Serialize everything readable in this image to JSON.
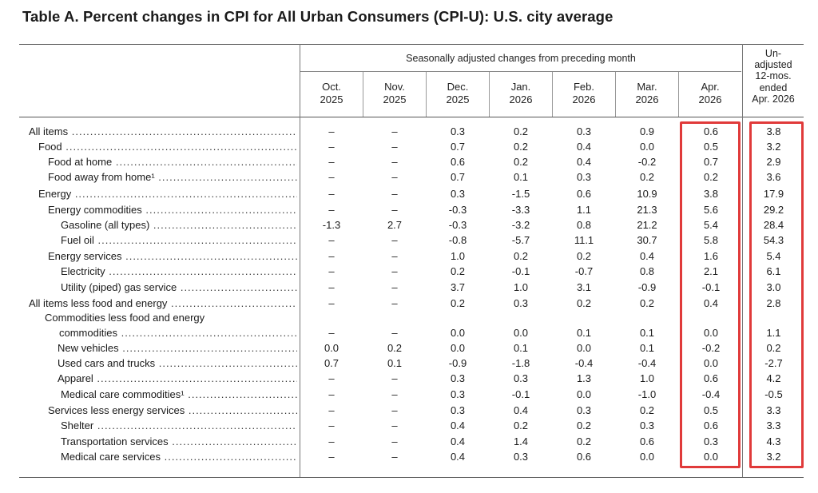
{
  "title": "Table A. Percent changes in CPI for All Urban Consumers (CPI-U): U.S. city average",
  "header": {
    "seasonal": "Seasonally adjusted changes from preceding month",
    "unadjusted": [
      "Un-",
      "adjusted",
      "12-mos.",
      "ended",
      "Apr. 2026"
    ],
    "months": [
      {
        "m": "Oct.",
        "y": "2025"
      },
      {
        "m": "Nov.",
        "y": "2025"
      },
      {
        "m": "Dec.",
        "y": "2025"
      },
      {
        "m": "Jan.",
        "y": "2026"
      },
      {
        "m": "Feb.",
        "y": "2026"
      },
      {
        "m": "Mar.",
        "y": "2026"
      },
      {
        "m": "Apr.",
        "y": "2026"
      }
    ]
  },
  "rows": [
    {
      "label": "All items",
      "values": [
        "–",
        "–",
        "0.3",
        "0.2",
        "0.3",
        "0.9",
        "0.6",
        "3.8"
      ]
    },
    {
      "label": "Food",
      "values": [
        "–",
        "–",
        "0.7",
        "0.2",
        "0.4",
        "0.0",
        "0.5",
        "3.2"
      ]
    },
    {
      "label": "Food at home",
      "values": [
        "–",
        "–",
        "0.6",
        "0.2",
        "0.4",
        "-0.2",
        "0.7",
        "2.9"
      ]
    },
    {
      "label": "Food away from home¹",
      "values": [
        "–",
        "–",
        "0.7",
        "0.1",
        "0.3",
        "0.2",
        "0.2",
        "3.6"
      ]
    },
    {
      "label": "Energy",
      "values": [
        "–",
        "–",
        "0.3",
        "-1.5",
        "0.6",
        "10.9",
        "3.8",
        "17.9"
      ]
    },
    {
      "label": "Energy commodities",
      "values": [
        "–",
        "–",
        "-0.3",
        "-3.3",
        "1.1",
        "21.3",
        "5.6",
        "29.2"
      ]
    },
    {
      "label": "Gasoline (all types)",
      "values": [
        "-1.3",
        "2.7",
        "-0.3",
        "-3.2",
        "0.8",
        "21.2",
        "5.4",
        "28.4"
      ]
    },
    {
      "label": "Fuel oil",
      "values": [
        "–",
        "–",
        "-0.8",
        "-5.7",
        "11.1",
        "30.7",
        "5.8",
        "54.3"
      ]
    },
    {
      "label": "Energy services",
      "values": [
        "–",
        "–",
        "1.0",
        "0.2",
        "0.2",
        "0.4",
        "1.6",
        "5.4"
      ]
    },
    {
      "label": "Electricity",
      "values": [
        "–",
        "–",
        "0.2",
        "-0.1",
        "-0.7",
        "0.8",
        "2.1",
        "6.1"
      ]
    },
    {
      "label": "Utility (piped) gas service",
      "values": [
        "–",
        "–",
        "3.7",
        "1.0",
        "3.1",
        "-0.9",
        "-0.1",
        "3.0"
      ]
    },
    {
      "label": "All items less food and energy",
      "values": [
        "–",
        "–",
        "0.2",
        "0.3",
        "0.2",
        "0.2",
        "0.4",
        "2.8"
      ]
    },
    {
      "label": "Commodities less food and energy",
      "label2": "commodities",
      "values": [
        "–",
        "–",
        "0.0",
        "0.0",
        "0.1",
        "0.1",
        "0.0",
        "1.1"
      ]
    },
    {
      "label": "New vehicles",
      "values": [
        "0.0",
        "0.2",
        "0.0",
        "0.1",
        "0.0",
        "0.1",
        "-0.2",
        "0.2"
      ]
    },
    {
      "label": "Used cars and trucks",
      "values": [
        "0.7",
        "0.1",
        "-0.9",
        "-1.8",
        "-0.4",
        "-0.4",
        "0.0",
        "-2.7"
      ]
    },
    {
      "label": "Apparel",
      "values": [
        "–",
        "–",
        "0.3",
        "0.3",
        "1.3",
        "1.0",
        "0.6",
        "4.2"
      ]
    },
    {
      "label": "Medical care commodities¹",
      "values": [
        "–",
        "–",
        "0.3",
        "-0.1",
        "0.0",
        "-1.0",
        "-0.4",
        "-0.5"
      ]
    },
    {
      "label": "Services less energy services",
      "values": [
        "–",
        "–",
        "0.3",
        "0.4",
        "0.3",
        "0.2",
        "0.5",
        "3.3"
      ]
    },
    {
      "label": "Shelter",
      "values": [
        "–",
        "–",
        "0.4",
        "0.2",
        "0.2",
        "0.3",
        "0.6",
        "3.3"
      ]
    },
    {
      "label": "Transportation services",
      "values": [
        "–",
        "–",
        "0.4",
        "1.4",
        "0.2",
        "0.6",
        "0.3",
        "4.3"
      ]
    },
    {
      "label": "Medical care services",
      "values": [
        "–",
        "–",
        "0.4",
        "0.3",
        "0.6",
        "0.0",
        "0.0",
        "3.2"
      ]
    }
  ],
  "highlight_color": "#e03a3a"
}
